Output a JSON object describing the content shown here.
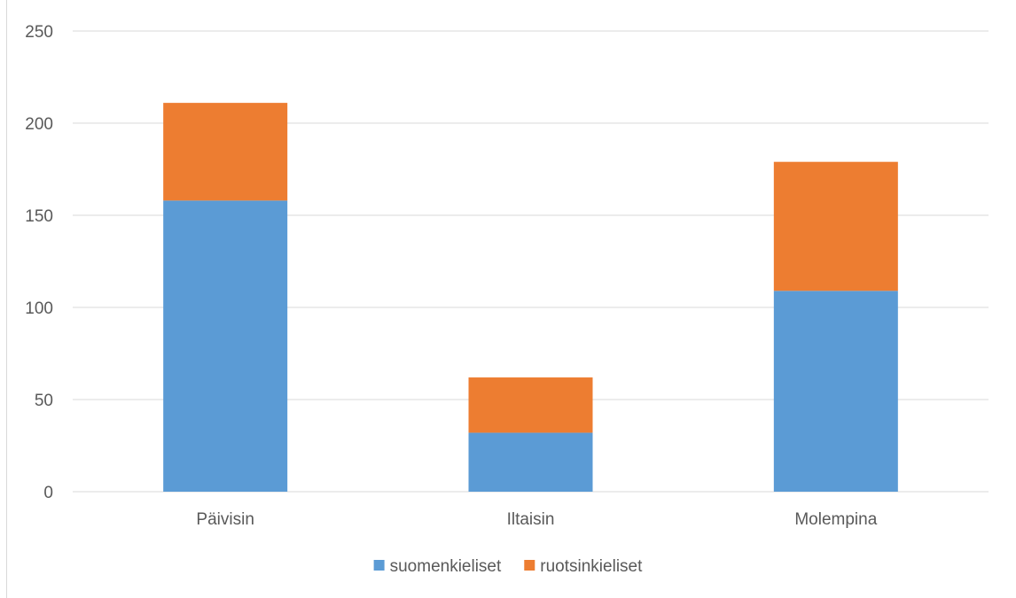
{
  "chart_data": {
    "type": "bar",
    "stacked": true,
    "categories": [
      "Päivisin",
      "Iltaisin",
      "Molempina"
    ],
    "series": [
      {
        "name": "suomenkieliset",
        "values": [
          158,
          32,
          109
        ],
        "color": "#5b9bd5"
      },
      {
        "name": "ruotsinkieliset",
        "values": [
          53,
          30,
          70
        ],
        "color": "#ed7d31"
      }
    ],
    "title": "",
    "xlabel": "",
    "ylabel": "",
    "ylim": [
      0,
      250
    ],
    "yticks": [
      0,
      50,
      100,
      150,
      200,
      250
    ],
    "grid": true,
    "legend_position": "bottom"
  }
}
